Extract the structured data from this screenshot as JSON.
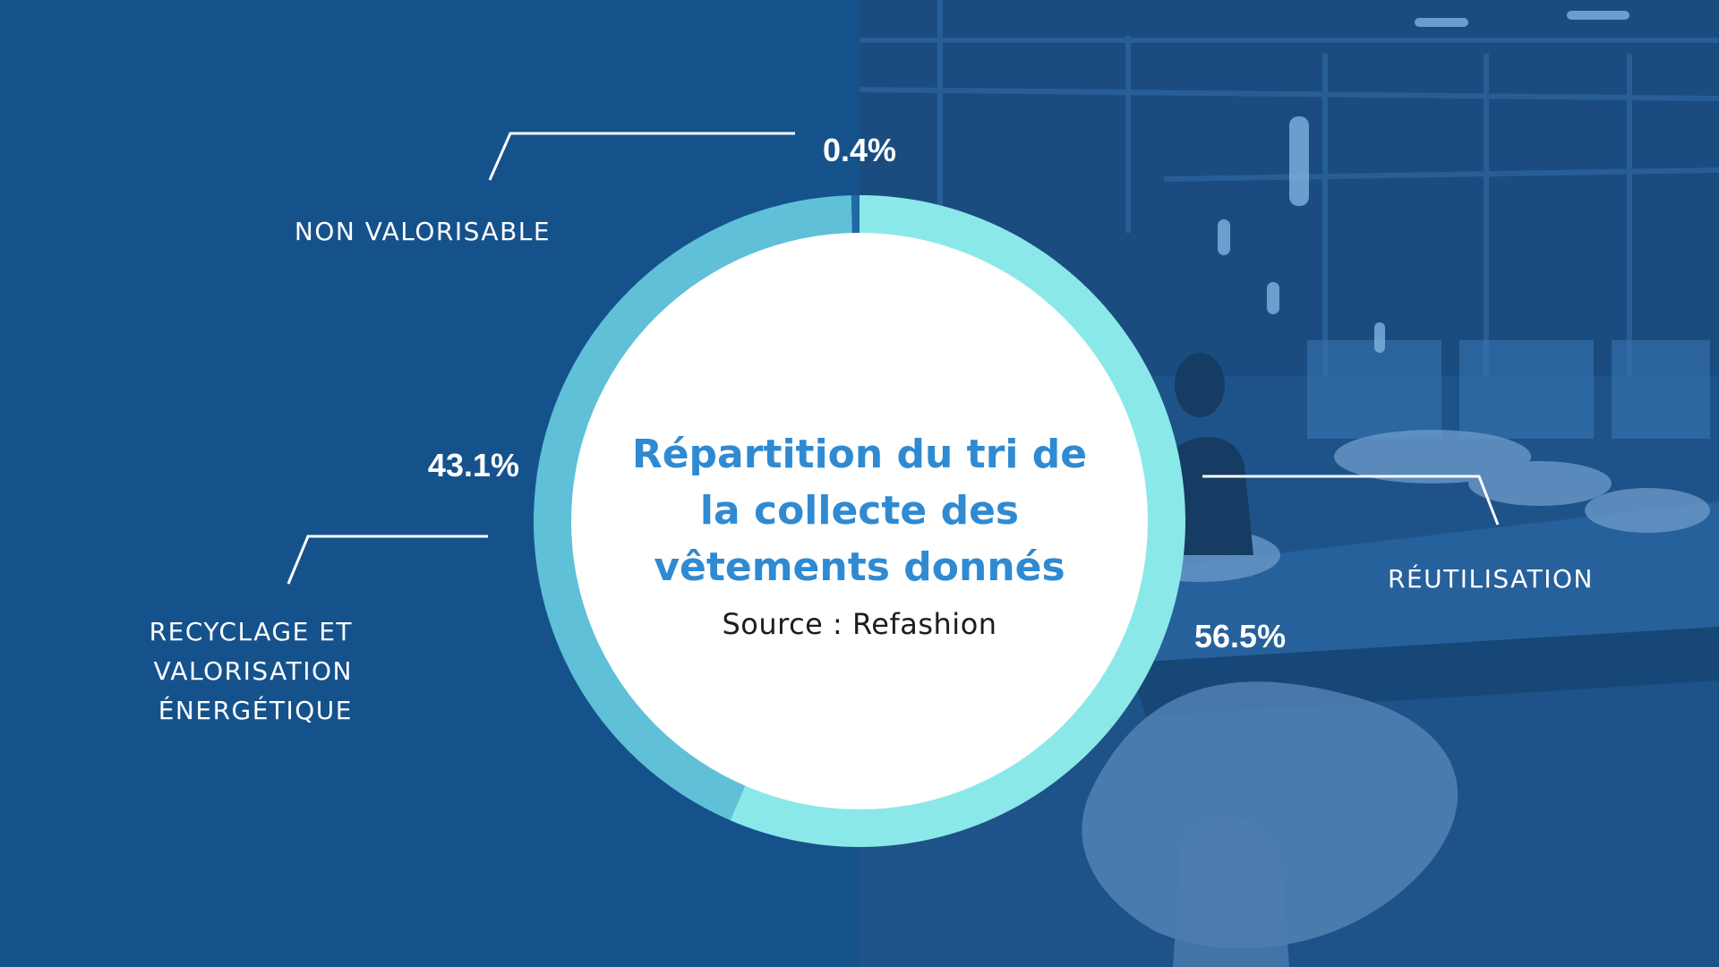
{
  "chart_data": {
    "type": "pie",
    "title_lines": [
      "Répartition du tri de",
      "la collecte des",
      "vêtements donnés"
    ],
    "source": "Source : Refashion",
    "slices": [
      {
        "label": "RÉUTILISATION",
        "label_lines": [
          "RÉUTILISATION"
        ],
        "value": 56.5,
        "value_text": "56.5%",
        "color": "#8be8e8"
      },
      {
        "label": "RECYCLAGE ET VALORISATION ÉNERGÉTIQUE",
        "label_lines": [
          "RECYCLAGE ET",
          "VALORISATION",
          "ÉNERGÉTIQUE"
        ],
        "value": 43.1,
        "value_text": "43.1%",
        "color": "#5fc0d8"
      },
      {
        "label": "NON VALORISABLE",
        "label_lines": [
          "NON VALORISABLE"
        ],
        "value": 0.4,
        "value_text": "0.4%",
        "color": "#1f6aa5"
      }
    ]
  },
  "colors": {
    "background": "#15528c",
    "title": "#2f8ad2",
    "center_fill": "#ffffff",
    "leader_lines": "#ffffff"
  }
}
